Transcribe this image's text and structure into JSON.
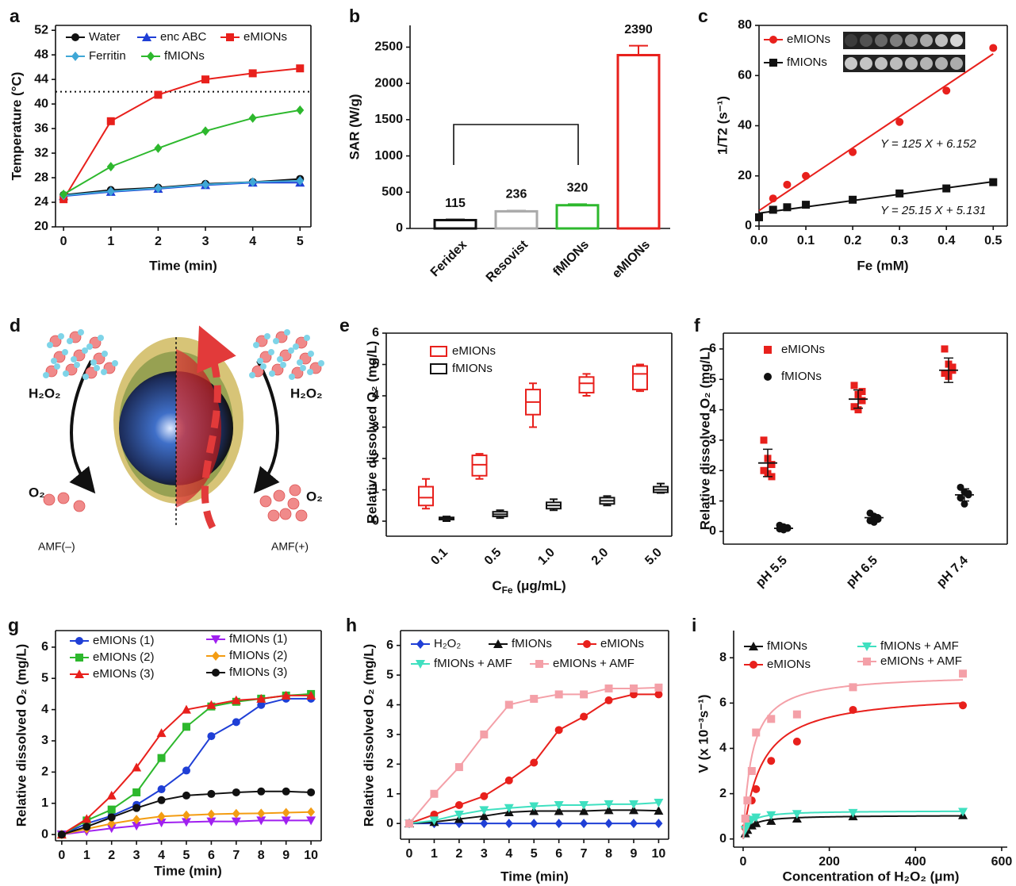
{
  "chart_data": [
    {
      "panel": "a",
      "type": "line",
      "xlabel": "Time (min)",
      "ylabel": "Temperature (°C)",
      "x": [
        0,
        1,
        2,
        3,
        4,
        5
      ],
      "xlim": [
        -0.17,
        5.23
      ],
      "ylim": [
        20,
        52.8
      ],
      "xticks": [
        0,
        1,
        2,
        3,
        4,
        5
      ],
      "yticks": [
        20,
        24,
        28,
        32,
        36,
        40,
        44,
        48,
        52
      ],
      "reference_line": 42,
      "series": [
        {
          "name": "Water",
          "color": "#111111",
          "marker": "circle",
          "values": [
            25.2,
            26.0,
            26.4,
            27.0,
            27.3,
            27.8
          ]
        },
        {
          "name": "enc ABC",
          "color": "#1f3fd6",
          "marker": "triangle",
          "values": [
            25.0,
            25.7,
            26.2,
            26.8,
            27.2,
            27.2
          ]
        },
        {
          "name": "eMIONs",
          "color": "#e8201c",
          "marker": "square",
          "values": [
            24.5,
            37.2,
            41.5,
            44.0,
            45.0,
            45.8
          ]
        },
        {
          "name": "Ferritin",
          "color": "#3fa7d6",
          "marker": "diamond",
          "values": [
            25.1,
            25.8,
            26.3,
            26.9,
            27.3,
            27.5
          ]
        },
        {
          "name": "fMIONs",
          "color": "#2db82d",
          "marker": "diamond",
          "values": [
            25.3,
            29.8,
            32.8,
            35.6,
            37.7,
            39.0
          ]
        }
      ]
    },
    {
      "panel": "b",
      "type": "bar",
      "ylabel": "SAR (W/g)",
      "categories": [
        "Feridex",
        "Resovist",
        "fMIONs",
        "eMIONs"
      ],
      "values": [
        115,
        236,
        320,
        2390
      ],
      "errors": [
        10,
        10,
        15,
        130
      ],
      "colors": [
        "#111111",
        "#aaaaaa",
        "#2db82d",
        "#e8201c"
      ],
      "ylim": [
        0,
        2800
      ],
      "yticks": [
        0,
        500,
        1000,
        1500,
        2000,
        2500
      ]
    },
    {
      "panel": "c",
      "type": "scatter",
      "xlabel": "Fe (mM)",
      "ylabel": "1/T2 (s⁻¹)",
      "x": [
        0,
        0.03,
        0.06,
        0.1,
        0.2,
        0.3,
        0.4,
        0.5
      ],
      "xlim": [
        0,
        0.53
      ],
      "ylim": [
        0,
        80
      ],
      "xticks": [
        {
          "value": 0,
          "label": "0.0"
        },
        0.1,
        0.2,
        0.3,
        0.4,
        0.5
      ],
      "yticks": [
        0,
        20,
        40,
        60,
        80
      ],
      "series": [
        {
          "name": "eMIONs",
          "color": "#e8201c",
          "marker": "circle",
          "values": [
            3.5,
            11,
            16.5,
            20,
            29.5,
            41.5,
            54,
            71
          ],
          "fit": {
            "slope": 125,
            "intercept": 6.152,
            "label": "Y = 125 X + 6.152"
          }
        },
        {
          "name": "fMIONs",
          "color": "#111111",
          "marker": "square",
          "values": [
            3.5,
            6.5,
            7.5,
            8.5,
            10.5,
            13,
            15,
            17.5
          ],
          "fit": {
            "slope": 25.15,
            "intercept": 5.131,
            "label": "Y = 25.15 X + 5.131"
          }
        }
      ]
    },
    {
      "panel": "e",
      "type": "box",
      "xlabel": [
        "C",
        "Fe",
        " (μg/mL)"
      ],
      "ylabel": "Relative dissolved O₂ (mg/L)",
      "categories": [
        "0.1",
        "0.5",
        "1.0",
        "2.0",
        "5.0"
      ],
      "ylim": [
        -0.48,
        6
      ],
      "yticks": [
        0,
        1,
        2,
        3,
        4,
        5,
        6
      ],
      "series": [
        {
          "name": "eMIONs",
          "color": "#e8201c",
          "boxes": [
            [
              0.4,
              0.5,
              0.75,
              1.1,
              1.35
            ],
            [
              1.35,
              1.45,
              1.8,
              2.1,
              2.15
            ],
            [
              3.0,
              3.4,
              3.8,
              4.2,
              4.4
            ],
            [
              4.0,
              4.1,
              4.4,
              4.6,
              4.7
            ],
            [
              4.15,
              4.2,
              4.7,
              4.95,
              5.0
            ]
          ]
        },
        {
          "name": "fMIONs",
          "color": "#111111",
          "boxes": [
            [
              0.0,
              0.05,
              0.1,
              0.12,
              0.15
            ],
            [
              0.1,
              0.15,
              0.22,
              0.3,
              0.35
            ],
            [
              0.35,
              0.4,
              0.5,
              0.6,
              0.7
            ],
            [
              0.5,
              0.55,
              0.65,
              0.75,
              0.8
            ],
            [
              0.9,
              0.92,
              1.0,
              1.1,
              1.2
            ]
          ]
        }
      ]
    },
    {
      "panel": "f",
      "type": "dot",
      "ylabel": "Relative dissolved O₂ (mg/L)",
      "categories": [
        "pH 5.5",
        "pH 6.5",
        "pH 7.4"
      ],
      "ylim": [
        -0.42,
        6.52
      ],
      "yticks": [
        0,
        1,
        2,
        3,
        4,
        5,
        6
      ],
      "series": [
        {
          "name": "eMIONs",
          "color": "#e8201c",
          "marker": "square",
          "points": [
            [
              3.0,
              2.4,
              2.2,
              2.0,
              1.9,
              1.8
            ],
            [
              4.8,
              4.5,
              4.3,
              4.1,
              4.0,
              4.6
            ],
            [
              6.0,
              5.5,
              5.4,
              5.2,
              5.1,
              5.3
            ]
          ],
          "means": [
            2.25,
            4.35,
            5.3
          ],
          "sds": [
            0.45,
            0.3,
            0.4
          ]
        },
        {
          "name": "fMIONs",
          "color": "#111111",
          "marker": "circle",
          "points": [
            [
              0.2,
              0.15,
              0.1,
              0.08,
              0.05,
              0.12
            ],
            [
              0.6,
              0.5,
              0.4,
              0.35,
              0.3,
              0.45
            ],
            [
              1.45,
              1.3,
              1.2,
              1.1,
              0.9,
              1.25
            ]
          ],
          "means": [
            0.1,
            0.45,
            1.2
          ],
          "sds": [
            0.05,
            0.1,
            0.2
          ]
        }
      ]
    },
    {
      "panel": "g",
      "type": "line",
      "xlabel": "Time (min)",
      "ylabel": "Relative dissolved O₂ (mg/L)",
      "x": [
        0,
        1,
        2,
        3,
        4,
        5,
        6,
        7,
        8,
        9,
        10
      ],
      "xlim": [
        -0.25,
        10.41
      ],
      "ylim": [
        -0.2,
        6.53
      ],
      "xticks": [
        0,
        1,
        2,
        3,
        4,
        5,
        6,
        7,
        8,
        9,
        10
      ],
      "yticks": [
        0,
        1,
        2,
        3,
        4,
        5,
        6
      ],
      "series": [
        {
          "name": "eMIONs (1)",
          "color": "#1f3fd6",
          "marker": "circle",
          "values": [
            0,
            0.35,
            0.6,
            0.95,
            1.45,
            2.05,
            3.15,
            3.6,
            4.15,
            4.35,
            4.35
          ]
        },
        {
          "name": "eMIONs (2)",
          "color": "#2db82d",
          "marker": "square",
          "values": [
            0,
            0.45,
            0.8,
            1.35,
            2.45,
            3.45,
            4.1,
            4.25,
            4.35,
            4.45,
            4.5
          ]
        },
        {
          "name": "eMIONs (3)",
          "color": "#e8201c",
          "marker": "triangle",
          "values": [
            0,
            0.5,
            1.25,
            2.15,
            3.25,
            4.0,
            4.15,
            4.3,
            4.35,
            4.45,
            4.45
          ]
        },
        {
          "name": "fMIONs (1)",
          "color": "#a020f0",
          "marker": "triangle-down",
          "values": [
            0,
            0.1,
            0.2,
            0.28,
            0.38,
            0.4,
            0.42,
            0.42,
            0.45,
            0.45,
            0.45
          ]
        },
        {
          "name": "fMIONs (2)",
          "color": "#f39c12",
          "marker": "diamond",
          "values": [
            0,
            0.18,
            0.35,
            0.48,
            0.58,
            0.62,
            0.65,
            0.67,
            0.68,
            0.7,
            0.72
          ]
        },
        {
          "name": "fMIONs (3)",
          "color": "#111111",
          "marker": "circle",
          "values": [
            0,
            0.25,
            0.55,
            0.85,
            1.1,
            1.25,
            1.3,
            1.35,
            1.38,
            1.38,
            1.35
          ]
        }
      ]
    },
    {
      "panel": "h",
      "type": "line",
      "xlabel": "Time (min)",
      "ylabel": "Relative dissolved O₂ (mg/L)",
      "x": [
        0,
        1,
        2,
        3,
        4,
        5,
        6,
        7,
        8,
        9,
        10
      ],
      "xlim": [
        -0.35,
        10.4
      ],
      "ylim": [
        -0.53,
        6.5
      ],
      "xticks": [
        0,
        1,
        2,
        3,
        4,
        5,
        6,
        7,
        8,
        9,
        10
      ],
      "yticks": [
        0,
        1,
        2,
        3,
        4,
        5,
        6
      ],
      "series": [
        {
          "name": "H₂O₂",
          "color": "#1f3fd6",
          "marker": "diamond",
          "values": [
            0,
            0,
            0,
            0,
            0,
            0,
            0,
            0,
            0,
            0,
            0
          ]
        },
        {
          "name": "fMIONs",
          "color": "#111111",
          "marker": "triangle",
          "values": [
            0,
            0.05,
            0.15,
            0.25,
            0.38,
            0.42,
            0.42,
            0.42,
            0.45,
            0.45,
            0.43
          ]
        },
        {
          "name": "eMIONs",
          "color": "#e8201c",
          "marker": "circle",
          "values": [
            0,
            0.3,
            0.62,
            0.92,
            1.45,
            2.05,
            3.15,
            3.6,
            4.15,
            4.35,
            4.35
          ]
        },
        {
          "name": "fMIONs + AMF",
          "color": "#3fe0c0",
          "marker": "triangle-down",
          "values": [
            0,
            0.1,
            0.3,
            0.45,
            0.52,
            0.58,
            0.62,
            0.62,
            0.65,
            0.65,
            0.7
          ]
        },
        {
          "name": "eMIONs + AMF",
          "color": "#f4a0a8",
          "marker": "square",
          "values": [
            0,
            1.0,
            1.9,
            3.0,
            4.0,
            4.2,
            4.35,
            4.35,
            4.55,
            4.55,
            4.58
          ]
        }
      ]
    },
    {
      "panel": "i",
      "type": "scatter",
      "xlabel": "Concentration of H₂O₂ (μm)",
      "ylabel": "V (x 10⁻³s⁻¹)",
      "x": [
        5,
        10,
        20,
        30,
        65,
        125,
        255,
        510
      ],
      "xlim": [
        -22,
        613
      ],
      "ylim": [
        -0.36,
        9.2
      ],
      "xticks": [
        0,
        200,
        400,
        600
      ],
      "yticks": [
        0,
        2,
        4,
        6,
        8
      ],
      "series": [
        {
          "name": "fMIONs",
          "color": "#111111",
          "marker": "triangle",
          "values": [
            0.25,
            0.4,
            0.6,
            0.7,
            0.8,
            0.9,
            1.0,
            1.05
          ],
          "fit": {
            "vmax": 1.05,
            "km": 15
          }
        },
        {
          "name": "eMIONs",
          "color": "#e8201c",
          "marker": "circle",
          "values": [
            0.5,
            0.9,
            1.7,
            2.2,
            3.45,
            4.3,
            5.7,
            5.9
          ],
          "fit": {
            "vmax": 6.5,
            "km": 42
          }
        },
        {
          "name": "fMIONs + AMF",
          "color": "#3fe0c0",
          "marker": "triangle-down",
          "values": [
            0.4,
            0.6,
            0.85,
            0.95,
            1.05,
            1.1,
            1.15,
            1.2
          ],
          "fit": {
            "vmax": 1.25,
            "km": 12
          }
        },
        {
          "name": "eMIONs + AMF",
          "color": "#f4a0a8",
          "marker": "square",
          "values": [
            0.9,
            1.7,
            3.0,
            4.7,
            5.3,
            5.5,
            6.7,
            7.3
          ],
          "fit": {
            "vmax": 7.3,
            "km": 20
          }
        }
      ]
    }
  ],
  "diagram": {
    "panel": "d",
    "left_reactant": "H₂O₂",
    "right_reactant": "H₂O₂",
    "left_product": "O₂",
    "right_product": "O₂",
    "left_condition": "AMF(–)",
    "right_condition": "AMF(+)"
  }
}
